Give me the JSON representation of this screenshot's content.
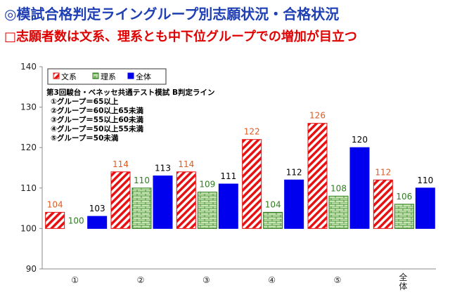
{
  "header": {
    "title": "◎模試合格判定ライングループ別志願状況・合格状況",
    "subtitle": "□志願者数は文系、理系とも中下位グループでの増加が目立つ"
  },
  "chart_data": {
    "type": "bar",
    "categories": [
      "①",
      "②",
      "③",
      "④",
      "⑤",
      "全体"
    ],
    "series": [
      {
        "name": "文系",
        "values": [
          104,
          114,
          114,
          122,
          126,
          112
        ],
        "label_color": "#e05a20"
      },
      {
        "name": "理系",
        "values": [
          100,
          110,
          109,
          104,
          108,
          106
        ],
        "label_color": "#2e7d1e"
      },
      {
        "name": "全体",
        "values": [
          103,
          113,
          111,
          112,
          120,
          110
        ],
        "label_color": "#000000"
      }
    ],
    "ylim": [
      90,
      140
    ],
    "yticks": [
      90,
      100,
      110,
      120,
      130,
      140
    ],
    "grid": false,
    "legend": "top-left",
    "annotation": [
      "第3回駿台・ベネッセ共通テスト模試 B判定ライン",
      "①グループ＝65以上",
      "②グループ＝60以上65未満",
      "③グループ＝55以上60未満",
      "④グループ＝50以上55未満",
      "⑤グループ＝50未満"
    ],
    "colors": {
      "bunkei_hatch": "#e81010",
      "rikei_fill": "#c8e6b4",
      "rikei_line": "#2e7d1e",
      "zentai": "#0000ee"
    }
  }
}
